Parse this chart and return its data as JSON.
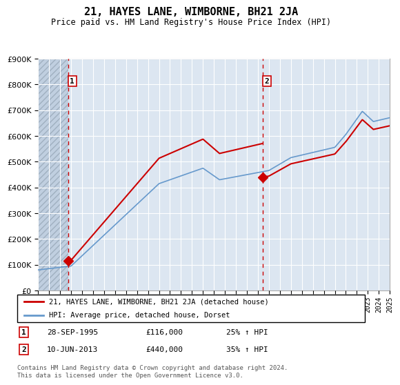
{
  "title": "21, HAYES LANE, WIMBORNE, BH21 2JA",
  "subtitle": "Price paid vs. HM Land Registry's House Price Index (HPI)",
  "footer": "Contains HM Land Registry data © Crown copyright and database right 2024.\nThis data is licensed under the Open Government Licence v3.0.",
  "legend_line1": "21, HAYES LANE, WIMBORNE, BH21 2JA (detached house)",
  "legend_line2": "HPI: Average price, detached house, Dorset",
  "purchase1_label": "1",
  "purchase1_date": "28-SEP-1995",
  "purchase1_price": "£116,000",
  "purchase1_hpi": "25% ↑ HPI",
  "purchase2_label": "2",
  "purchase2_date": "10-JUN-2013",
  "purchase2_price": "£440,000",
  "purchase2_hpi": "35% ↑ HPI",
  "purchase1_year": 1995.75,
  "purchase1_value": 116000,
  "purchase2_year": 2013.44,
  "purchase2_value": 440000,
  "ylim": [
    0,
    900000
  ],
  "xlim_start": 1993,
  "xlim_end": 2025,
  "plot_bg": "#dce6f1",
  "hatch_color": "#c0cfe0",
  "line_color_red": "#cc0000",
  "line_color_blue": "#6699cc",
  "grid_color": "#ffffff"
}
